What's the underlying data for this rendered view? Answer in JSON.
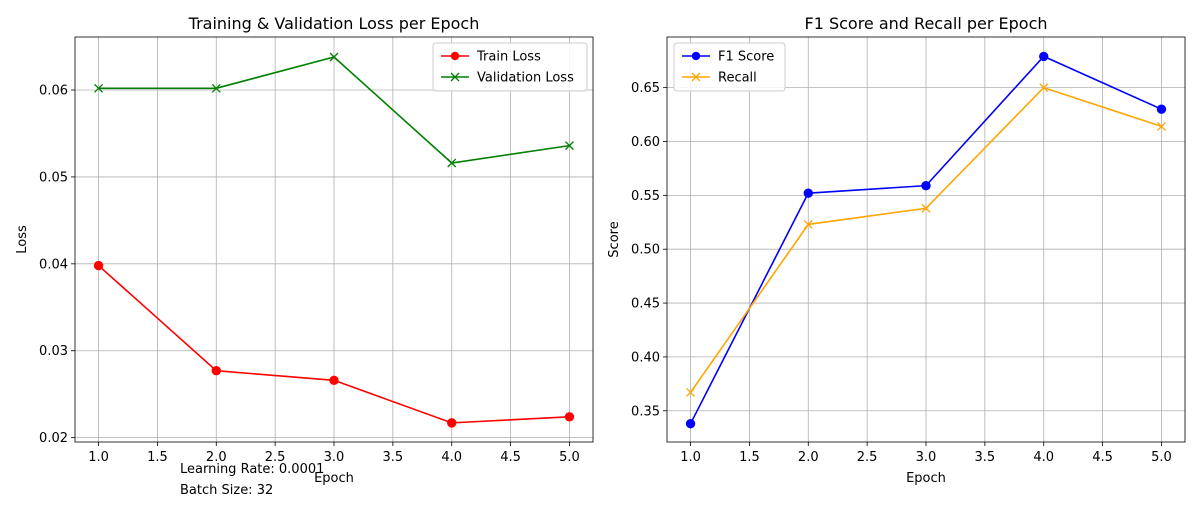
{
  "chart_data": [
    {
      "type": "line",
      "title": "Training & Validation Loss per Epoch",
      "xlabel": "Epoch",
      "ylabel": "Loss",
      "x": [
        1.0,
        2.0,
        3.0,
        4.0,
        5.0
      ],
      "xlim": [
        0.8,
        5.2
      ],
      "ylim": [
        0.0195,
        0.0661
      ],
      "xticks": [
        1.0,
        1.5,
        2.0,
        2.5,
        3.0,
        3.5,
        4.0,
        4.5,
        5.0
      ],
      "yticks": [
        0.02,
        0.03,
        0.04,
        0.05,
        0.06
      ],
      "xtick_labels": [
        "1.0",
        "1.5",
        "2.0",
        "2.5",
        "3.0",
        "3.5",
        "4.0",
        "4.5",
        "5.0"
      ],
      "ytick_labels": [
        "0.02",
        "0.03",
        "0.04",
        "0.05",
        "0.06"
      ],
      "grid": true,
      "legend_position": "upper right",
      "series": [
        {
          "name": "Train Loss",
          "color": "#ff0000",
          "marker": "circle",
          "values": [
            0.0398,
            0.0277,
            0.0266,
            0.0217,
            0.0224
          ]
        },
        {
          "name": "Validation Loss",
          "color": "#008000",
          "marker": "x",
          "values": [
            0.0602,
            0.0602,
            0.0638,
            0.0516,
            0.0536
          ]
        }
      ]
    },
    {
      "type": "line",
      "title": "F1 Score and Recall per Epoch",
      "xlabel": "Epoch",
      "ylabel": "Score",
      "x": [
        1.0,
        2.0,
        3.0,
        4.0,
        5.0
      ],
      "xlim": [
        0.8,
        5.2
      ],
      "ylim": [
        0.321,
        0.697
      ],
      "xticks": [
        1.0,
        1.5,
        2.0,
        2.5,
        3.0,
        3.5,
        4.0,
        4.5,
        5.0
      ],
      "yticks": [
        0.35,
        0.4,
        0.45,
        0.5,
        0.55,
        0.6,
        0.65
      ],
      "xtick_labels": [
        "1.0",
        "1.5",
        "2.0",
        "2.5",
        "3.0",
        "3.5",
        "4.0",
        "4.5",
        "5.0"
      ],
      "ytick_labels": [
        "0.35",
        "0.40",
        "0.45",
        "0.50",
        "0.55",
        "0.60",
        "0.65"
      ],
      "grid": true,
      "legend_position": "upper left",
      "series": [
        {
          "name": "F1 Score",
          "color": "#0000ff",
          "marker": "circle",
          "values": [
            0.338,
            0.552,
            0.559,
            0.679,
            0.63
          ]
        },
        {
          "name": "Recall",
          "color": "#ffa500",
          "marker": "x",
          "values": [
            0.367,
            0.523,
            0.538,
            0.65,
            0.614
          ]
        }
      ]
    }
  ],
  "annotations": {
    "learning_rate": "Learning Rate: 0.0001",
    "batch_size": "Batch Size: 32"
  }
}
